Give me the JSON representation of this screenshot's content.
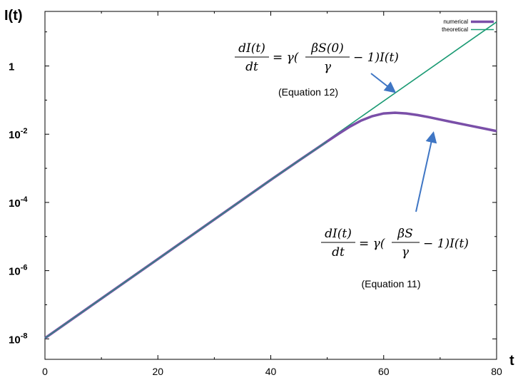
{
  "chart_data": {
    "type": "line",
    "title": "",
    "xlabel": "t",
    "ylabel": "I(t)",
    "xlim": [
      0,
      80
    ],
    "ylim_log10": [
      -8.6,
      1.6
    ],
    "yscale": "log",
    "grid": false,
    "legend_position": "top-right",
    "x_ticks": [
      "0",
      "20",
      "40",
      "60",
      "80"
    ],
    "y_ticks": [
      {
        "log10": -8,
        "base": "10",
        "exp": "-8"
      },
      {
        "log10": -6,
        "base": "10",
        "exp": "-6"
      },
      {
        "log10": -4,
        "base": "10",
        "exp": "-4"
      },
      {
        "log10": -2,
        "base": "10",
        "exp": "-2"
      },
      {
        "log10": 0,
        "base": "1",
        "exp": ""
      }
    ],
    "series": [
      {
        "name": "theoretical",
        "color": "#1a9a73",
        "x": [
          0,
          80
        ],
        "log10_y": [
          -7.98,
          1.29
        ]
      },
      {
        "name": "numerical",
        "color": "#7a4fa8",
        "x": [
          0,
          10,
          20,
          30,
          40,
          45,
          50,
          52,
          54,
          56,
          58,
          60,
          62,
          64,
          66,
          68,
          70,
          72,
          75,
          78,
          80
        ],
        "log10_y": [
          -7.98,
          -6.82,
          -5.66,
          -4.5,
          -3.34,
          -2.77,
          -2.21,
          -1.99,
          -1.78,
          -1.6,
          -1.47,
          -1.39,
          -1.37,
          -1.39,
          -1.44,
          -1.5,
          -1.57,
          -1.64,
          -1.74,
          -1.84,
          -1.91
        ]
      }
    ],
    "annotations": {
      "eq12": {
        "lhs_num": "dI(t)",
        "lhs_den": "dt",
        "rhs_pre": "= γ(",
        "frac_num": "βS(0)",
        "frac_den": "γ",
        "rhs_post": "− 1)I(t)",
        "caption": "(Equation 12)"
      },
      "eq11": {
        "lhs_num": "dI(t)",
        "lhs_den": "dt",
        "rhs_pre": "= γ(",
        "frac_num": "βS",
        "frac_den": "γ",
        "rhs_post": "− 1)I(t)",
        "caption": "(Equation 11)"
      }
    },
    "arrow_color": "#3f76c4"
  }
}
